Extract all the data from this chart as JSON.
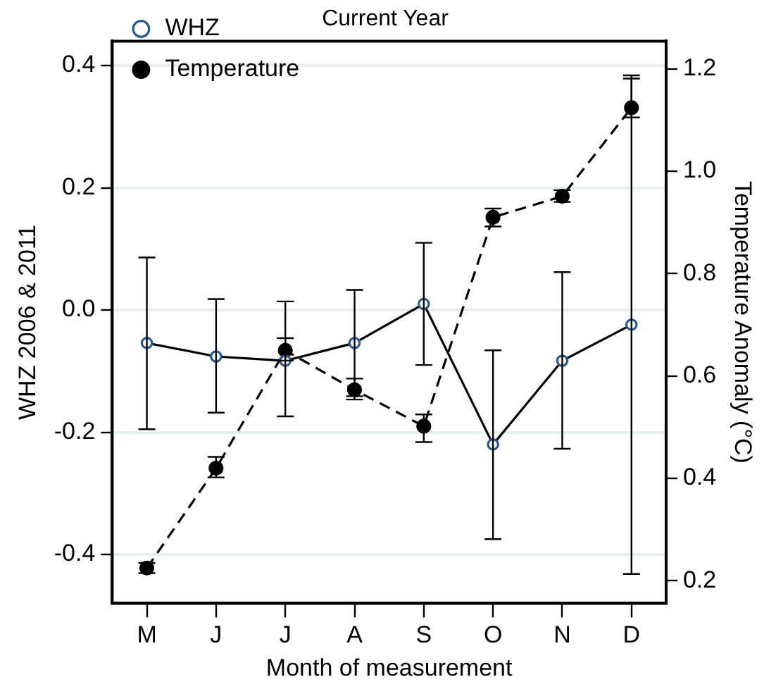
{
  "chart_data": {
    "type": "line",
    "title": "Current Year",
    "xlabel": "Month of measurement",
    "ylabel": "WHZ 2006 & 2011",
    "y2label": "Temperature Anomaly (°C)",
    "categories": [
      "M",
      "J",
      "J",
      "A",
      "S",
      "O",
      "N",
      "D"
    ],
    "series": [
      {
        "name": "WHZ",
        "color": "#000000",
        "marker": "circle",
        "line_style": "solid",
        "values": [
          -0.054,
          -0.076,
          -0.083,
          -0.054,
          0.01,
          -0.22,
          -0.083,
          -0.024
        ],
        "errors": [
          [
            -0.195,
            0.086
          ],
          [
            -0.168,
            0.018
          ],
          [
            -0.174,
            0.014
          ],
          [
            -0.141,
            0.033
          ],
          [
            -0.09,
            0.11
          ],
          [
            -0.375,
            -0.066
          ],
          [
            -0.227,
            0.062
          ],
          [
            -0.432,
            0.384
          ]
        ]
      },
      {
        "name": "Temperature",
        "color": "#000000",
        "marker": "circle",
        "line_style": "dashed",
        "axis": "y2",
        "values": [
          0.225,
          0.42,
          0.65,
          0.573,
          0.502,
          0.91,
          0.951,
          1.124
        ],
        "errors": [
          [
            0.215,
            0.235
          ],
          [
            0.402,
            0.442
          ],
          [
            0.63,
            0.674
          ],
          [
            0.554,
            0.595
          ],
          [
            0.471,
            0.525
          ],
          [
            0.892,
            0.927
          ],
          [
            0.94,
            0.963
          ],
          [
            1.105,
            1.181
          ]
        ]
      }
    ],
    "ylim": [
      -0.48,
      0.44
    ],
    "yticks": [
      -0.4,
      -0.2,
      {
        "value": 0,
        "label": "0.0"
      },
      0.2,
      0.4
    ],
    "y2lim": [
      0.156,
      1.254
    ],
    "y2ticks": [
      0.2,
      0.4,
      0.6,
      0.8,
      {
        "value": 1,
        "label": "1.0"
      },
      1.2
    ],
    "grid": "y",
    "legend": "top left"
  }
}
